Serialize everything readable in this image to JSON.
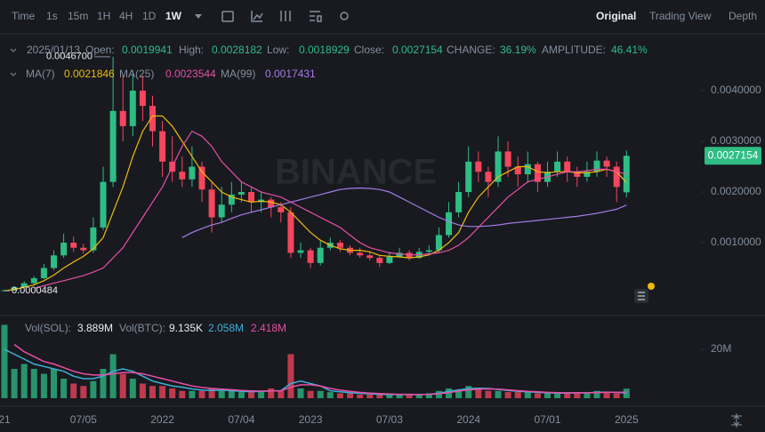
{
  "toolbar": {
    "intervals": [
      "Time",
      "1s",
      "15m",
      "1H",
      "4H",
      "1D",
      "1W"
    ],
    "views": [
      "Original",
      "Trading View",
      "Depth"
    ]
  },
  "legend": {
    "date": "2025/01/13",
    "open_label": "Open:",
    "open": "0.0019941",
    "high_label": "High:",
    "high": "0.0028182",
    "low_label": "Low:",
    "low": "0.0018929",
    "close_label": "Close:",
    "close": "0.0027154",
    "change_label": "CHANGE:",
    "change": "36.19%",
    "amplitude_label": "AMPLITUDE:",
    "amplitude": "46.41%"
  },
  "watermark": "BINANCE",
  "chart_data": {
    "type": "candlestick",
    "categories": [
      "21",
      null,
      null,
      null,
      null,
      null,
      null,
      null,
      "07/05",
      null,
      null,
      null,
      null,
      null,
      null,
      null,
      "2022",
      null,
      null,
      null,
      null,
      null,
      null,
      null,
      "07/04",
      null,
      null,
      null,
      null,
      null,
      null,
      "2023",
      null,
      null,
      null,
      null,
      null,
      null,
      null,
      "07/03",
      null,
      null,
      null,
      null,
      null,
      null,
      null,
      "2024",
      null,
      null,
      null,
      null,
      null,
      null,
      null,
      "07/01",
      null,
      null,
      null,
      null,
      null,
      null,
      null,
      "2025"
    ],
    "open": [
      5e-05,
      6e-05,
      0.00012,
      0.0002,
      0.0003,
      0.0005,
      0.00075,
      0.001,
      0.0009,
      0.00085,
      0.0013,
      0.0022,
      0.0036,
      0.0033,
      0.004,
      0.0037,
      0.0032,
      0.0026,
      0.0024,
      0.00225,
      0.0025,
      0.00205,
      0.0015,
      0.00175,
      0.00195,
      0.002,
      0.0018,
      0.00185,
      0.0017,
      0.0016,
      0.0008,
      0.00085,
      0.0006,
      0.0009,
      0.001,
      0.0009,
      0.0008,
      0.00075,
      0.0007,
      0.0006,
      0.00072,
      0.0008,
      0.0007,
      0.00082,
      0.00085,
      0.00115,
      0.0016,
      0.002,
      0.0026,
      0.0024,
      0.0022,
      0.0028,
      0.0025,
      0.00235,
      0.00255,
      0.0022,
      0.0024,
      0.0026,
      0.0024,
      0.0023,
      0.0024,
      0.00262,
      0.0025,
      0.0019941
    ],
    "high": [
      8e-05,
      0.00014,
      0.00024,
      0.00034,
      0.00058,
      0.00085,
      0.00118,
      0.00112,
      0.00098,
      0.0015,
      0.0025,
      0.00467,
      0.0043,
      0.0044,
      0.0043,
      0.0039,
      0.0034,
      0.0031,
      0.0027,
      0.0029,
      0.0026,
      0.0022,
      0.0021,
      0.0022,
      0.0022,
      0.0021,
      0.002,
      0.0019,
      0.0018,
      0.0017,
      0.001,
      0.0009,
      0.00105,
      0.0011,
      0.00105,
      0.00095,
      0.0009,
      0.00082,
      0.00075,
      0.00082,
      0.0009,
      0.00085,
      0.0009,
      0.00095,
      0.0013,
      0.0018,
      0.0022,
      0.0029,
      0.0028,
      0.0025,
      0.0031,
      0.003,
      0.0027,
      0.0028,
      0.0026,
      0.0026,
      0.0028,
      0.0027,
      0.0025,
      0.0026,
      0.0028,
      0.0027,
      0.0026,
      0.0028182
    ],
    "low": [
      4.84e-05,
      5e-05,
      0.00011,
      0.00018,
      0.00028,
      0.00046,
      0.0007,
      0.00082,
      0.00078,
      0.0008,
      0.00125,
      0.0021,
      0.003,
      0.0031,
      0.0034,
      0.0029,
      0.0023,
      0.0022,
      0.0021,
      0.0021,
      0.0018,
      0.0012,
      0.0014,
      0.0016,
      0.0018,
      0.0016,
      0.0016,
      0.0015,
      0.0014,
      0.0007,
      0.0007,
      0.0005,
      0.00055,
      0.00085,
      0.00082,
      0.00075,
      0.0007,
      0.00065,
      0.00052,
      0.00058,
      0.0007,
      0.00065,
      0.00068,
      0.00078,
      0.0008,
      0.0011,
      0.0015,
      0.0019,
      0.0022,
      0.0019,
      0.0021,
      0.0023,
      0.0021,
      0.0022,
      0.002,
      0.0021,
      0.0023,
      0.0022,
      0.0021,
      0.0022,
      0.0023,
      0.0023,
      0.0018,
      0.0018929
    ],
    "close": [
      6e-05,
      0.00012,
      0.0002,
      0.0003,
      0.0005,
      0.00075,
      0.001,
      0.0009,
      0.00085,
      0.0013,
      0.0022,
      0.0036,
      0.0033,
      0.004,
      0.0037,
      0.0032,
      0.0026,
      0.0024,
      0.00225,
      0.0025,
      0.00205,
      0.0015,
      0.00175,
      0.00195,
      0.002,
      0.0018,
      0.00185,
      0.0017,
      0.0016,
      0.0008,
      0.00085,
      0.0006,
      0.0009,
      0.001,
      0.0009,
      0.0008,
      0.00075,
      0.0007,
      0.0006,
      0.00072,
      0.0008,
      0.0007,
      0.00082,
      0.00085,
      0.00115,
      0.0016,
      0.002,
      0.0026,
      0.0024,
      0.0022,
      0.0028,
      0.0025,
      0.00235,
      0.00255,
      0.0022,
      0.0024,
      0.0026,
      0.0024,
      0.0023,
      0.0024,
      0.00262,
      0.0025,
      0.0021,
      0.0027154
    ],
    "up_color": "#2ebd85",
    "down_color": "#f6465d",
    "ylim": [
      -0.00035,
      0.005
    ],
    "yticks": [
      {
        "value": 0.004,
        "label": "0.0040000"
      },
      {
        "value": 0.003,
        "label": "0.0030000"
      },
      {
        "value": 0.002,
        "label": "0.0020000"
      },
      {
        "value": 0.001,
        "label": "0.0010000"
      }
    ],
    "last_price_label": "0.0027154",
    "annotations": [
      {
        "text": "0.0046700",
        "value": 0.00467
      },
      {
        "text": "0.0000484",
        "value": 4.84e-05
      }
    ],
    "ma_lines": [
      {
        "name": "MA(7)",
        "color": "#f0b90b",
        "last_label": "0.0021846",
        "values": [
          5e-05,
          8e-05,
          0.00012,
          0.00017,
          0.00025,
          0.00036,
          0.0005,
          0.00062,
          0.00073,
          0.00088,
          0.0011,
          0.0016,
          0.0021,
          0.0027,
          0.0032,
          0.0035,
          0.0035,
          0.0033,
          0.003,
          0.0027,
          0.0024,
          0.0022,
          0.002,
          0.0019,
          0.00185,
          0.0018,
          0.00182,
          0.0018,
          0.00175,
          0.0016,
          0.0014,
          0.0012,
          0.00105,
          0.00095,
          0.00088,
          0.00085,
          0.00085,
          0.00082,
          0.00075,
          0.00073,
          0.00072,
          0.0007,
          0.00072,
          0.00076,
          0.00085,
          0.001,
          0.0012,
          0.0016,
          0.0019,
          0.0021,
          0.0023,
          0.0024,
          0.0025,
          0.0025,
          0.0024,
          0.00238,
          0.0024,
          0.0024,
          0.00238,
          0.00238,
          0.0024,
          0.00245,
          0.0024,
          0.0021846
        ]
      },
      {
        "name": "MA(25)",
        "color": "#e84fa5",
        "last_label": "0.0023544",
        "values": [
          null,
          null,
          null,
          0.0001,
          0.00015,
          0.0002,
          0.00025,
          0.0003,
          0.00035,
          0.00042,
          0.0005,
          0.0007,
          0.0009,
          0.0012,
          0.0015,
          0.0018,
          0.0021,
          0.0025,
          0.0029,
          0.0032,
          0.0031,
          0.0029,
          0.0026,
          0.0024,
          0.0022,
          0.0021,
          0.002,
          0.00195,
          0.0019,
          0.0018,
          0.0017,
          0.0016,
          0.0015,
          0.0014,
          0.0013,
          0.00115,
          0.001,
          0.0009,
          0.00085,
          0.0008,
          0.00078,
          0.00076,
          0.00076,
          0.00078,
          0.0008,
          0.00085,
          0.00095,
          0.0011,
          0.0013,
          0.0015,
          0.0017,
          0.0019,
          0.00205,
          0.0022,
          0.00225,
          0.0023,
          0.00235,
          0.0024,
          0.0024,
          0.00242,
          0.00245,
          0.00245,
          0.0024,
          0.0023544
        ]
      },
      {
        "name": "MA(99)",
        "color": "#a77be6",
        "last_label": "0.0017431",
        "values": [
          null,
          null,
          null,
          null,
          null,
          null,
          null,
          null,
          null,
          null,
          null,
          null,
          null,
          null,
          null,
          null,
          null,
          null,
          0.0011,
          0.0012,
          0.00128,
          0.00135,
          0.0014,
          0.00148,
          0.00155,
          0.0016,
          0.00165,
          0.0017,
          0.00175,
          0.0018,
          0.00185,
          0.0019,
          0.00195,
          0.002,
          0.00205,
          0.00207,
          0.00208,
          0.00207,
          0.00205,
          0.002,
          0.0019,
          0.0018,
          0.0017,
          0.0016,
          0.0015,
          0.00142,
          0.00135,
          0.00132,
          0.00132,
          0.00133,
          0.00135,
          0.00138,
          0.0014,
          0.00142,
          0.00144,
          0.00146,
          0.00148,
          0.0015,
          0.00152,
          0.00155,
          0.00158,
          0.00162,
          0.00166,
          0.0017431
        ]
      }
    ],
    "volume": {
      "name": "Vol(SOL):",
      "last_label": "3.889M",
      "alt_name": "Vol(BTC):",
      "alt_label": "9.135K",
      "values": [
        30,
        12,
        14,
        12,
        10,
        12,
        8,
        6,
        5,
        7,
        12,
        18,
        10,
        8,
        6,
        5,
        5,
        4,
        3,
        3,
        3,
        4,
        3,
        3,
        2.5,
        2.5,
        3,
        4,
        3,
        18,
        4,
        3,
        3,
        2.5,
        2,
        2,
        1.5,
        1.5,
        1.5,
        1.5,
        1.5,
        1.5,
        1.5,
        2,
        3,
        4,
        3,
        5,
        4,
        3,
        3,
        2.5,
        2.5,
        2.5,
        2,
        2,
        2,
        2.5,
        2,
        2,
        3,
        2.5,
        2,
        3.889
      ],
      "ylim": [
        0,
        33.8
      ],
      "yticks": [
        {
          "value": 20,
          "label": "20M"
        }
      ],
      "ma_lines": [
        {
          "color": "#3bb1d9",
          "last_label": "2.058M",
          "values": [
            20,
            18,
            16,
            14,
            13,
            12,
            11,
            9,
            8,
            8,
            9,
            11,
            12,
            11,
            9,
            7,
            6,
            5,
            4.5,
            3.8,
            3.3,
            3.2,
            3.3,
            3.1,
            2.8,
            2.7,
            2.8,
            3,
            3.1,
            6,
            7,
            6,
            5,
            3,
            2.6,
            2.3,
            2,
            1.8,
            1.6,
            1.5,
            1.5,
            1.5,
            1.5,
            1.6,
            2,
            2.8,
            3.4,
            3.9,
            4.1,
            4,
            3.6,
            3.2,
            2.8,
            2.6,
            2.4,
            2.2,
            2.1,
            2.1,
            2.2,
            2.2,
            2.4,
            2.5,
            2.4,
            2.058
          ]
        },
        {
          "color": "#e84fa5",
          "last_label": "2.418M",
          "values": [
            null,
            22,
            19,
            17,
            15,
            14,
            12.5,
            11,
            10,
            9.5,
            9.5,
            10,
            10.5,
            10.5,
            10,
            9,
            8,
            7,
            6,
            5,
            4.4,
            4,
            3.7,
            3.5,
            3.2,
            3,
            2.9,
            3,
            3,
            4.5,
            5.5,
            5.5,
            5,
            4,
            3.3,
            2.8,
            2.4,
            2.1,
            1.9,
            1.7,
            1.6,
            1.6,
            1.5,
            1.6,
            1.8,
            2.3,
            2.9,
            3.4,
            3.7,
            3.8,
            3.7,
            3.4,
            3.1,
            2.8,
            2.6,
            2.4,
            2.3,
            2.2,
            2.2,
            2.2,
            2.3,
            2.4,
            2.4,
            2.418
          ]
        }
      ]
    }
  }
}
